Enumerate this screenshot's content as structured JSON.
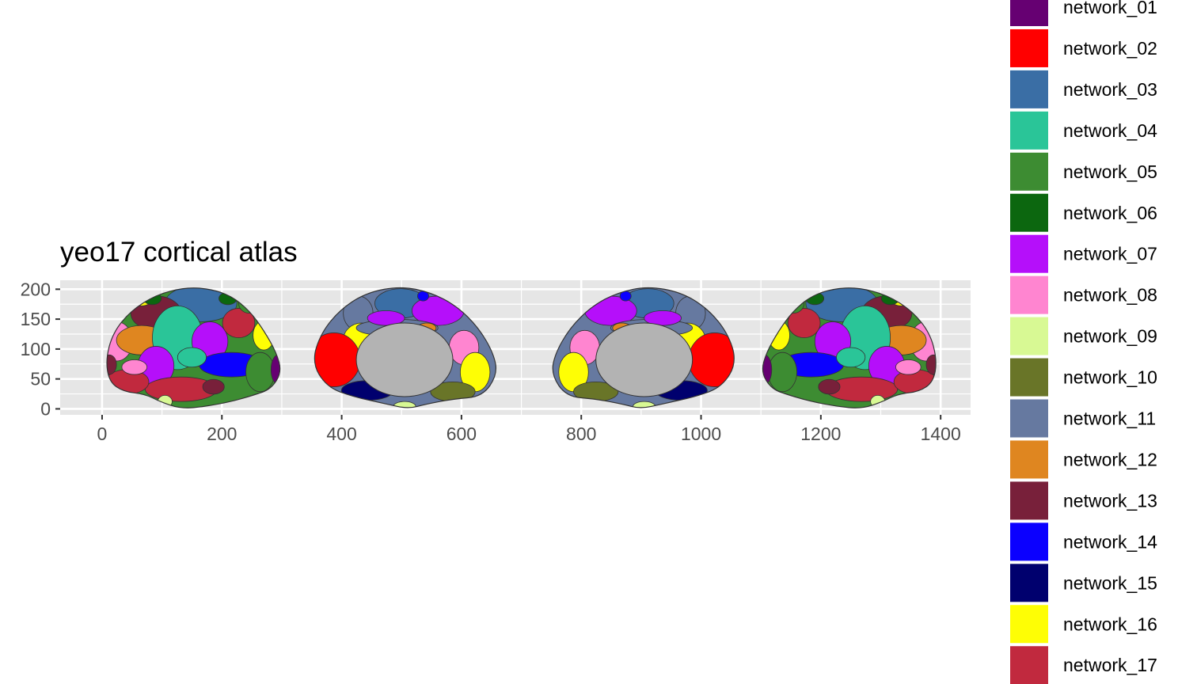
{
  "chart_data": {
    "type": "other",
    "title": "yeo17 cortical atlas",
    "xlabel": "",
    "ylabel": "",
    "xlim": [
      -70,
      1450
    ],
    "ylim": [
      -10,
      215
    ],
    "x_ticks": [
      0,
      200,
      400,
      600,
      800,
      1000,
      1200,
      1400
    ],
    "y_ticks": [
      0,
      50,
      100,
      150,
      200
    ],
    "grid": true,
    "background_color": "#e6e6e6",
    "grid_color": "#ffffff",
    "background_region_color": "#b3b3b3",
    "legend_position": "right",
    "views": [
      {
        "name": "left-lateral",
        "x_range": [
          0,
          300
        ],
        "y_range": [
          0,
          205
        ]
      },
      {
        "name": "left-medial",
        "x_range": [
          350,
          660
        ],
        "y_range": [
          0,
          205
        ]
      },
      {
        "name": "right-medial",
        "x_range": [
          750,
          1060
        ],
        "y_range": [
          0,
          205
        ]
      },
      {
        "name": "right-lateral",
        "x_range": [
          1100,
          1400
        ],
        "y_range": [
          0,
          205
        ]
      }
    ],
    "legend": [
      {
        "label": "network_01",
        "color": "#660072"
      },
      {
        "label": "network_02",
        "color": "#ff0000"
      },
      {
        "label": "network_03",
        "color": "#3a6ea5"
      },
      {
        "label": "network_04",
        "color": "#2ac598"
      },
      {
        "label": "network_05",
        "color": "#3d8c32"
      },
      {
        "label": "network_06",
        "color": "#0c670f"
      },
      {
        "label": "network_07",
        "color": "#b50ffa"
      },
      {
        "label": "network_08",
        "color": "#ff85d0"
      },
      {
        "label": "network_09",
        "color": "#d8f994"
      },
      {
        "label": "network_10",
        "color": "#697528"
      },
      {
        "label": "network_11",
        "color": "#6679a0"
      },
      {
        "label": "network_12",
        "color": "#df8620"
      },
      {
        "label": "network_13",
        "color": "#78203a"
      },
      {
        "label": "network_14",
        "color": "#0b00ff"
      },
      {
        "label": "network_15",
        "color": "#00006e"
      },
      {
        "label": "network_16",
        "color": "#fefe05"
      },
      {
        "label": "network_17",
        "color": "#c1293e"
      }
    ]
  }
}
